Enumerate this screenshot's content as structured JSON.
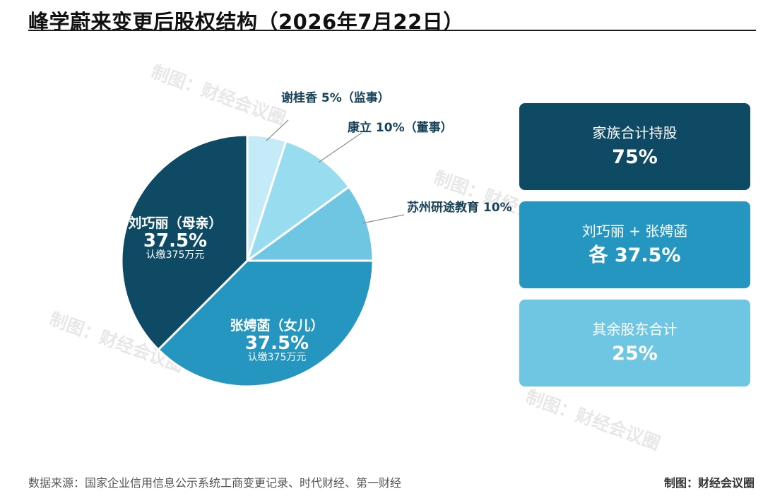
{
  "title": "峰学蔚来变更后股权结构（2026年7月22日）",
  "colors": {
    "darkest": "#0e4a63",
    "dark": "#2596c0",
    "mid": "#6fc6e3",
    "light": "#97dcef",
    "lightest": "#c4ebf7",
    "box1": "#0e4a63",
    "box2": "#2596c0",
    "box3": "#6fc6e3"
  },
  "chart_data": {
    "type": "pie",
    "title": "峰学蔚来变更后股权结构（2026年7月22日）",
    "unit": "%",
    "slices": [
      {
        "name": "谢桂香",
        "value": 5,
        "value_label": "5%",
        "role": "（监事）",
        "label": "谢桂香 5%（监事）"
      },
      {
        "name": "康立",
        "value": 10,
        "value_label": "10%",
        "role": "（董事）",
        "label": "康立 10%（董事）"
      },
      {
        "name": "苏州研途教育",
        "value": 10,
        "value_label": "10%",
        "role": "",
        "label": "苏州研途教育 10%"
      },
      {
        "name": "张娉菡",
        "value": 37.5,
        "value_label": "37.5%",
        "role": "（女儿）",
        "label": "张娉菡（女儿）",
        "note": "认缴375万元"
      },
      {
        "name": "刘巧丽",
        "value": 37.5,
        "value_label": "37.5%",
        "role": "（母亲）",
        "label": "刘巧丽（母亲）",
        "note": "认缴375万元"
      }
    ]
  },
  "summary": [
    {
      "label": "家族合计持股",
      "value": "75%"
    },
    {
      "label": "刘巧丽 + 张娉菡",
      "value": "各 37.5%"
    },
    {
      "label": "其余股东合计",
      "value": "25%"
    }
  ],
  "watermark": "制图：财经会议圈",
  "footer": {
    "source": "数据来源：国家企业信用信息公示系统工商变更记录、时代财经、第一财经",
    "credit": "制图：财经会议圈"
  }
}
